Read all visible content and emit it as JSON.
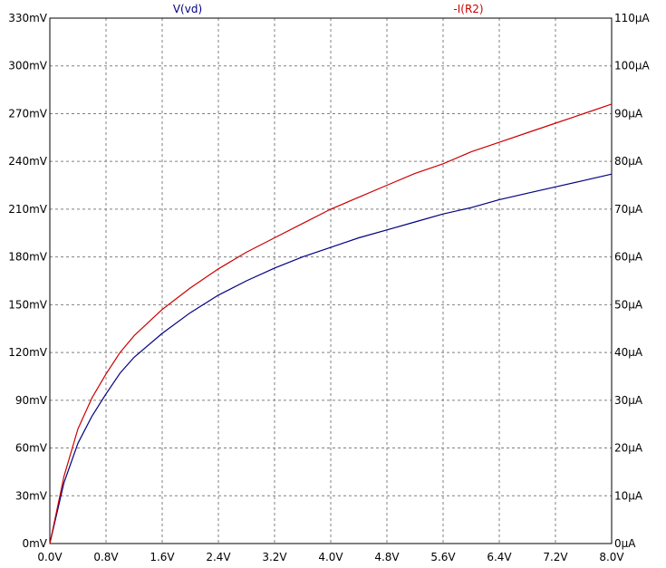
{
  "chart_data": {
    "type": "line",
    "x": [
      0,
      0.2,
      0.4,
      0.6,
      0.8,
      1.0,
      1.2,
      1.6,
      2.0,
      2.4,
      2.8,
      3.2,
      3.6,
      4.0,
      4.4,
      4.8,
      5.2,
      5.6,
      6.0,
      6.4,
      6.8,
      7.2,
      7.6,
      8.0
    ],
    "x_ticks": [
      "0.0V",
      "0.8V",
      "1.6V",
      "2.4V",
      "3.2V",
      "4.0V",
      "4.8V",
      "5.6V",
      "6.4V",
      "7.2V",
      "8.0V"
    ],
    "xlim": [
      0,
      8
    ],
    "y_left_ticks": [
      "0mV",
      "30mV",
      "60mV",
      "90mV",
      "120mV",
      "150mV",
      "180mV",
      "210mV",
      "240mV",
      "270mV",
      "300mV",
      "330mV"
    ],
    "y_left_lim": [
      0,
      330
    ],
    "y_right_ticks": [
      "0µA",
      "10µA",
      "20µA",
      "30µA",
      "40µA",
      "50µA",
      "60µA",
      "70µA",
      "80µA",
      "90µA",
      "100µA",
      "110µA"
    ],
    "y_right_lim": [
      0,
      110
    ],
    "grid": true,
    "series": [
      {
        "name": "V(vd)",
        "axis": "left",
        "color": "#000080",
        "values": [
          0,
          38,
          63,
          80,
          94,
          107,
          117,
          132,
          145,
          156,
          165,
          173,
          180,
          186,
          192,
          197,
          202,
          207,
          211,
          216,
          220,
          224,
          228,
          232
        ]
      },
      {
        "name": "-I(R2)",
        "axis": "right",
        "color": "#cc0000",
        "values": [
          0,
          14,
          24,
          30.5,
          35.5,
          40,
          43.5,
          49,
          53.5,
          57.5,
          61,
          64,
          67,
          70,
          72.5,
          75,
          77.5,
          79.5,
          82,
          84,
          86,
          88,
          90,
          92
        ]
      }
    ]
  }
}
